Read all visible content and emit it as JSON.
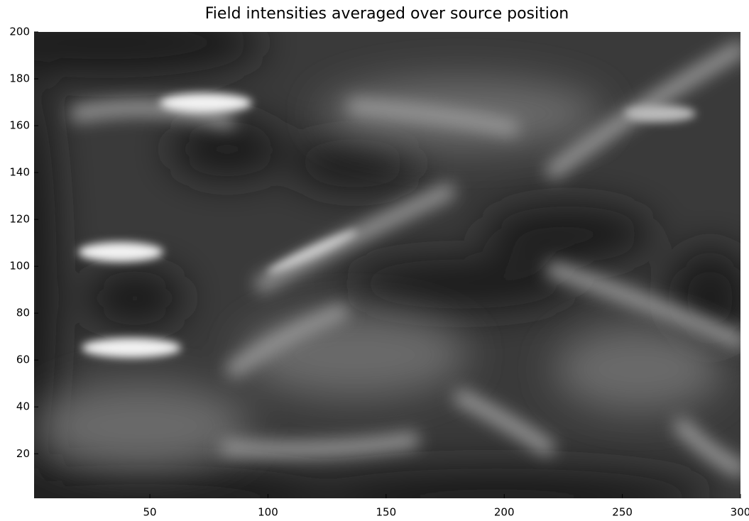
{
  "chart_data": {
    "type": "heatmap",
    "title": "Field intensities averaged over source position",
    "xlim": [
      1,
      300
    ],
    "ylim": [
      1,
      200
    ],
    "xticks": [
      50,
      100,
      150,
      200,
      250,
      300
    ],
    "yticks": [
      20,
      40,
      60,
      80,
      100,
      120,
      140,
      160,
      180,
      200
    ],
    "colormap": "gray"
  }
}
